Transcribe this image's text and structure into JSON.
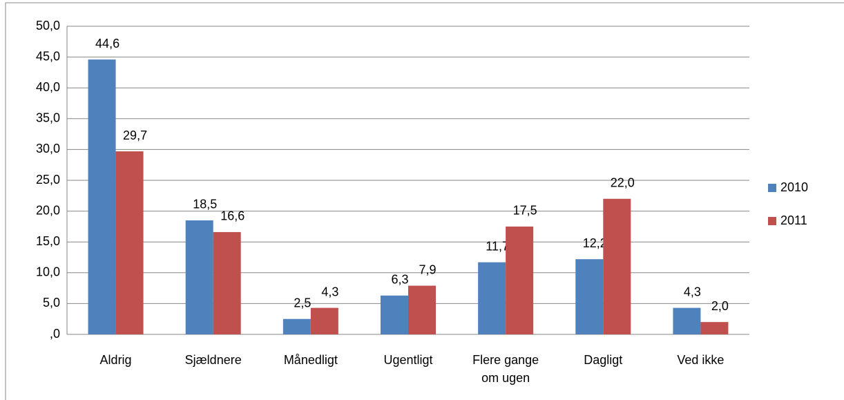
{
  "chart_data": {
    "type": "bar",
    "categories": [
      "Aldrig",
      "Sjældnere",
      "Månedligt",
      "Ugentligt",
      "Flere gange om ugen",
      "Dagligt",
      "Ved ikke"
    ],
    "series": [
      {
        "name": "2010",
        "color": "#4f81bd",
        "values": [
          44.6,
          18.5,
          2.5,
          6.3,
          11.7,
          12.2,
          4.3
        ],
        "value_labels": [
          "44,6",
          "18,5",
          "2,5",
          "6,3",
          "11,7",
          "12,2",
          "4,3"
        ]
      },
      {
        "name": "2011",
        "color": "#c0504d",
        "values": [
          29.7,
          16.6,
          4.3,
          7.9,
          17.5,
          22.0,
          2.0
        ],
        "value_labels": [
          "29,7",
          "16,6",
          "4,3",
          "7,9",
          "17,5",
          "22,0",
          "2,0"
        ]
      }
    ],
    "ylim": [
      0,
      50
    ],
    "yticks": [
      {
        "value": 0,
        "label": ",0"
      },
      {
        "value": 5,
        "label": "5,0"
      },
      {
        "value": 10,
        "label": "10,0"
      },
      {
        "value": 15,
        "label": "15,0"
      },
      {
        "value": 20,
        "label": "20,0"
      },
      {
        "value": 25,
        "label": "25,0"
      },
      {
        "value": 30,
        "label": "30,0"
      },
      {
        "value": 35,
        "label": "35,0"
      },
      {
        "value": 40,
        "label": "40,0"
      },
      {
        "value": 45,
        "label": "45,0"
      },
      {
        "value": 50,
        "label": "50,0"
      }
    ],
    "grid": true,
    "legend": "right"
  }
}
